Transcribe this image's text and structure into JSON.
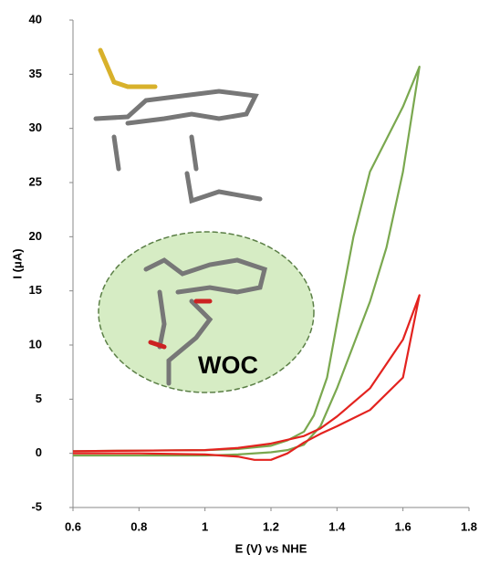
{
  "chart_data": {
    "type": "line",
    "x_label": "E (V) vs NHE",
    "y_label": "I (μA)",
    "annotations": [
      "WOC"
    ],
    "xlim": [
      0.6,
      1.8
    ],
    "xticks": [
      0.6,
      0.8,
      1,
      1.2,
      1.4,
      1.6,
      1.8
    ],
    "ylim": [
      -5,
      40
    ],
    "yticks": [
      -5,
      0,
      5,
      10,
      15,
      20,
      25,
      30,
      35,
      40
    ],
    "grid": false,
    "series": [
      {
        "color": "#7aa84f",
        "x": [
          0.6,
          0.8,
          1.0,
          1.1,
          1.2,
          1.25,
          1.3,
          1.35,
          1.4,
          1.45,
          1.5,
          1.55,
          1.6,
          1.65,
          1.6,
          1.55,
          1.5,
          1.45,
          1.4,
          1.37,
          1.33,
          1.3,
          1.25,
          1.2,
          1.1,
          1.0,
          0.8,
          0.6
        ],
        "values": [
          -0.2,
          -0.2,
          -0.2,
          -0.1,
          0.1,
          0.3,
          0.8,
          2.5,
          6,
          10,
          14,
          19,
          26,
          35.7,
          32,
          29,
          26,
          20,
          12,
          7,
          3.5,
          2,
          1.2,
          0.7,
          0.4,
          0.3,
          0.25,
          0.2
        ]
      },
      {
        "color": "#e3231f",
        "x": [
          0.6,
          0.8,
          1.0,
          1.1,
          1.2,
          1.3,
          1.35,
          1.4,
          1.5,
          1.6,
          1.65,
          1.6,
          1.5,
          1.4,
          1.35,
          1.3,
          1.25,
          1.2,
          1.15,
          1.1,
          1.0,
          0.8,
          0.6
        ],
        "values": [
          0.2,
          0.25,
          0.3,
          0.5,
          0.9,
          1.6,
          2.3,
          3.4,
          6,
          10.5,
          14.6,
          7,
          4,
          2.5,
          1.8,
          1.0,
          0,
          -0.6,
          -0.6,
          -0.3,
          -0.1,
          0,
          0
        ]
      }
    ]
  }
}
